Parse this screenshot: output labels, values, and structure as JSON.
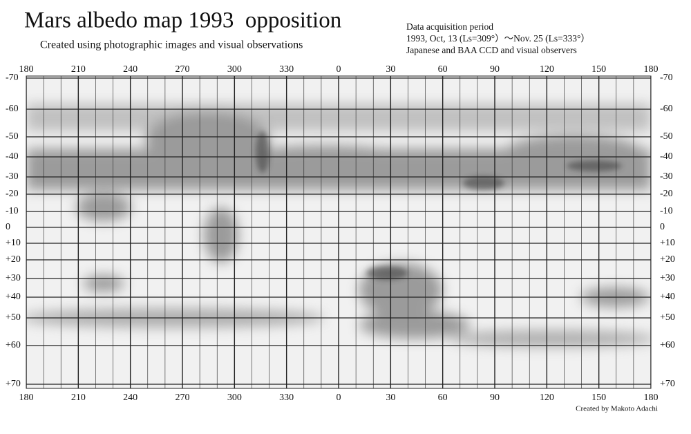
{
  "title": "Mars albedo map 1993  opposition",
  "subtitle": "Created using photographic images and visual observations",
  "info": [
    "Data acquisition period",
    "1993, Oct, 13 (Ls=309°）～Nov. 25 (Ls=333°）",
    "Japanese and BAA CCD and visual observers"
  ],
  "longitude_labels": [
    "180",
    "210",
    "240",
    "270",
    "300",
    "330",
    "0",
    "30",
    "60",
    "90",
    "120",
    "150",
    "180"
  ],
  "latitude_labels": [
    "-70",
    "-60",
    "-50",
    "-40",
    "-30",
    "-20",
    "-10",
    "0",
    "+10",
    "+20",
    "+30",
    "+40",
    "+50",
    "+60",
    "+70"
  ],
  "credit": "Created by Makoto Adachi"
}
